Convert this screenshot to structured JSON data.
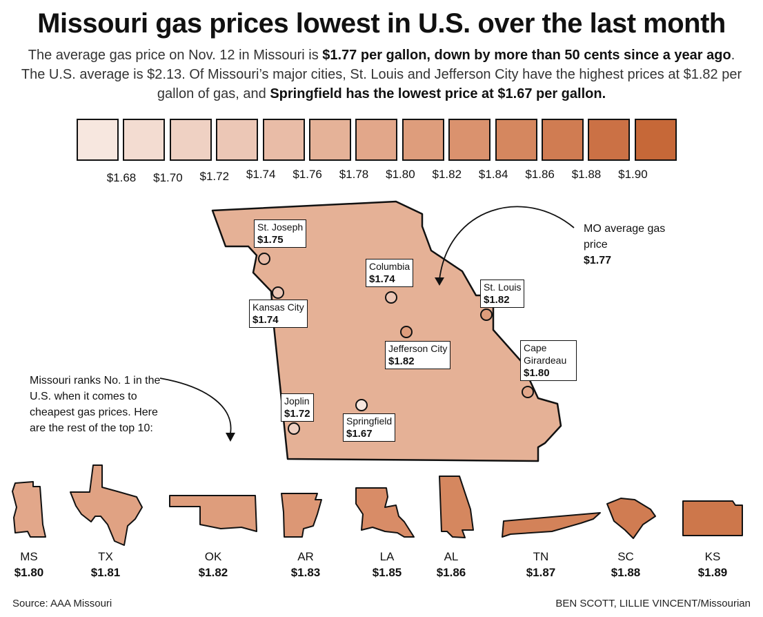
{
  "title": "Missouri gas prices lowest in U.S. over the last month",
  "subtitle": {
    "p1": "The average gas price on Nov. 12 in Missouri is ",
    "b1": "$1.77 per gallon, down by more than 50 cents since a year ago",
    "p2": ". The U.S. average is $2.13. Of Missouri’s major cities, St. Louis and Jefferson City have the highest prices at $1.82 per gallon of gas, and ",
    "b2": "Springfield has the lowest price at $1.67 per gallon."
  },
  "legend": {
    "colors": [
      "#f7e7df",
      "#f3dcd1",
      "#efd1c3",
      "#ecc7b6",
      "#e9bca7",
      "#e5b298",
      "#e2a78a",
      "#de9d7c",
      "#da926e",
      "#d5875f",
      "#d07c52",
      "#cb7145",
      "#c66838"
    ],
    "ticks": [
      "$1.68",
      "$1.70",
      "$1.72",
      "$1.74",
      "$1.76",
      "$1.78",
      "$1.80",
      "$1.82",
      "$1.84",
      "$1.86",
      "$1.88",
      "$1.90"
    ]
  },
  "missouri": {
    "fill": "#e5b196"
  },
  "cities": [
    {
      "name": "St. Joseph",
      "price": "$1.75",
      "color": "#e8bca7"
    },
    {
      "name": "Kansas City",
      "price": "$1.74",
      "color": "#ecc7b6"
    },
    {
      "name": "Columbia",
      "price": "$1.74",
      "color": "#ecc7b6"
    },
    {
      "name": "St. Louis",
      "price": "$1.82",
      "color": "#de9d7c"
    },
    {
      "name": "Jefferson City",
      "price": "$1.82",
      "color": "#de9d7c"
    },
    {
      "name": "Cape Girardeau",
      "price": "$1.80",
      "color": "#e2a78a"
    },
    {
      "name": "Joplin",
      "price": "$1.72",
      "color": "#efd1c3"
    },
    {
      "name": "Springfield",
      "price": "$1.67",
      "color": "#f7e7df"
    }
  ],
  "mo_note": {
    "text": "MO average gas price",
    "price": "$1.77"
  },
  "rank_note": "Missouri ranks No. 1 in the U.S. when it comes to cheapest gas prices. Here are the rest of the top 10:",
  "states": [
    {
      "abbr": "MS",
      "price": "$1.80",
      "color": "#e2a78a"
    },
    {
      "abbr": "TX",
      "price": "$1.81",
      "color": "#e0a283"
    },
    {
      "abbr": "OK",
      "price": "$1.82",
      "color": "#de9d7c"
    },
    {
      "abbr": "AR",
      "price": "$1.83",
      "color": "#dc9775"
    },
    {
      "abbr": "LA",
      "price": "$1.85",
      "color": "#d88c67"
    },
    {
      "abbr": "AL",
      "price": "$1.86",
      "color": "#d5875f"
    },
    {
      "abbr": "TN",
      "price": "$1.87",
      "color": "#d38259"
    },
    {
      "abbr": "SC",
      "price": "$1.88",
      "color": "#d07c52"
    },
    {
      "abbr": "KS",
      "price": "$1.89",
      "color": "#cd774b"
    }
  ],
  "footer": {
    "source_label": "Source",
    "source": ": AAA Missouri",
    "credit": "BEN SCOTT, LILLIE VINCENT",
    "outlet": "/Missourian"
  }
}
